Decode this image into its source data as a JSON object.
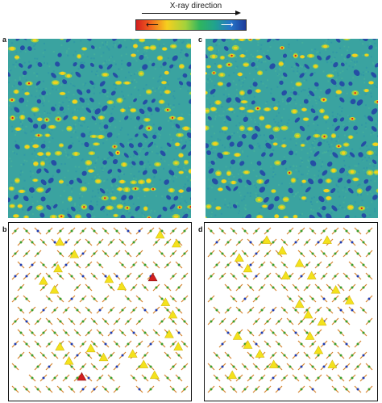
{
  "header": {
    "title": "X-ray direction",
    "colorbar": {
      "left_arrow": "⟵",
      "right_arrow": "⟶",
      "colors": [
        "#d31f1f",
        "#f6cf1e",
        "#2fb55e",
        "#2676c9",
        "#1d3b9a"
      ]
    }
  },
  "panels": [
    {
      "label": "a",
      "kind": "heatmap"
    },
    {
      "label": "c",
      "kind": "heatmap"
    },
    {
      "label": "b",
      "kind": "lattice"
    },
    {
      "label": "d",
      "kind": "lattice"
    }
  ],
  "colors": {
    "heat_bg": "#3aa3a0",
    "heat_low": "#2240a6",
    "heat_mid": "#a7d43a",
    "heat_high": "#f6d01e",
    "heat_peak": "#d3261c",
    "bond": "#d5852f",
    "atom_green": "#3c9f2c",
    "atom_blue": "#1f3cb0",
    "triangle": "#f3e21d",
    "triangle_edge": "#d6b90f",
    "triangle_red": "#d21e1e"
  }
}
